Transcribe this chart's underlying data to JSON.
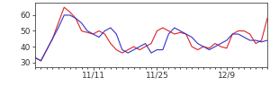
{
  "red_y": [
    33,
    31,
    38,
    45,
    55,
    65,
    62,
    58,
    50,
    49,
    48,
    50,
    48,
    42,
    38,
    36,
    38,
    40,
    38,
    40,
    42,
    50,
    52,
    50,
    48,
    49,
    48,
    40,
    38,
    40,
    39,
    42,
    40,
    39,
    48,
    50,
    50,
    48,
    42,
    44,
    58
  ],
  "blue_y": [
    33,
    31,
    38,
    45,
    52,
    60,
    60,
    58,
    55,
    50,
    48,
    46,
    50,
    52,
    48,
    38,
    36,
    38,
    40,
    42,
    36,
    38,
    38,
    48,
    52,
    50,
    48,
    46,
    42,
    40,
    38,
    40,
    42,
    44,
    48,
    48,
    46,
    44,
    44,
    43,
    44
  ],
  "yticks": [
    30,
    40,
    50,
    60
  ],
  "ylim": [
    27,
    68
  ],
  "xlim": [
    0,
    40
  ],
  "xtick_positions": [
    10,
    21,
    33
  ],
  "xtick_labels": [
    "11/11",
    "11/25",
    "12/9"
  ],
  "red_color": "#dd2222",
  "blue_color": "#3333cc",
  "bg_color": "#ffffff",
  "tick_label_fontsize": 6.5,
  "linewidth": 0.8
}
